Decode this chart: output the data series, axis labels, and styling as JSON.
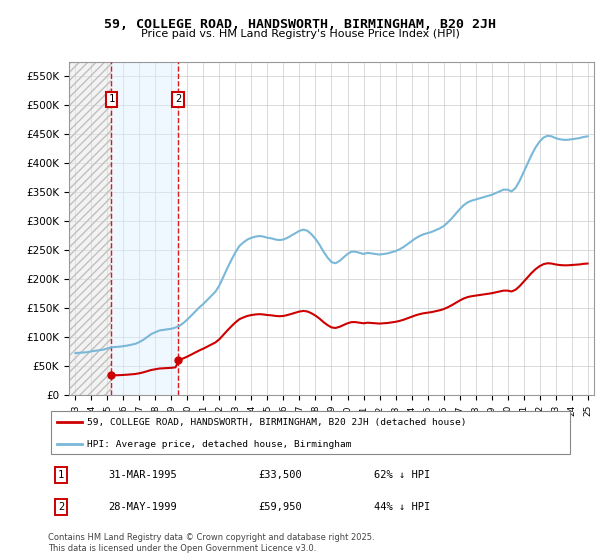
{
  "title": "59, COLLEGE ROAD, HANDSWORTH, BIRMINGHAM, B20 2JH",
  "subtitle": "Price paid vs. HM Land Registry's House Price Index (HPI)",
  "ylim": [
    0,
    575000
  ],
  "yticks": [
    0,
    50000,
    100000,
    150000,
    200000,
    250000,
    300000,
    350000,
    400000,
    450000,
    500000,
    550000
  ],
  "ytick_labels": [
    "£0",
    "£50K",
    "£100K",
    "£150K",
    "£200K",
    "£250K",
    "£300K",
    "£350K",
    "£400K",
    "£450K",
    "£500K",
    "£550K"
  ],
  "sale1_x": 1995.25,
  "sale1_price": 33500,
  "sale2_x": 1999.42,
  "sale2_price": 59950,
  "hpi_color": "#7ab8d9",
  "price_color": "#cc0000",
  "legend_label_price": "59, COLLEGE ROAD, HANDSWORTH, BIRMINGHAM, B20 2JH (detached house)",
  "legend_label_hpi": "HPI: Average price, detached house, Birmingham",
  "footer": "Contains HM Land Registry data © Crown copyright and database right 2025.\nThis data is licensed under the Open Government Licence v3.0.",
  "table": [
    {
      "num": "1",
      "date": "31-MAR-1995",
      "price": "£33,500",
      "note": "62% ↓ HPI"
    },
    {
      "num": "2",
      "date": "28-MAY-1999",
      "price": "£59,950",
      "note": "44% ↓ HPI"
    }
  ],
  "hpi_data": {
    "dates": [
      1993.0,
      1993.25,
      1993.5,
      1993.75,
      1994.0,
      1994.25,
      1994.5,
      1994.75,
      1995.0,
      1995.25,
      1995.5,
      1995.75,
      1996.0,
      1996.25,
      1996.5,
      1996.75,
      1997.0,
      1997.25,
      1997.5,
      1997.75,
      1998.0,
      1998.25,
      1998.5,
      1998.75,
      1999.0,
      1999.25,
      1999.5,
      1999.75,
      2000.0,
      2000.25,
      2000.5,
      2000.75,
      2001.0,
      2001.25,
      2001.5,
      2001.75,
      2002.0,
      2002.25,
      2002.5,
      2002.75,
      2003.0,
      2003.25,
      2003.5,
      2003.75,
      2004.0,
      2004.25,
      2004.5,
      2004.75,
      2005.0,
      2005.25,
      2005.5,
      2005.75,
      2006.0,
      2006.25,
      2006.5,
      2006.75,
      2007.0,
      2007.25,
      2007.5,
      2007.75,
      2008.0,
      2008.25,
      2008.5,
      2008.75,
      2009.0,
      2009.25,
      2009.5,
      2009.75,
      2010.0,
      2010.25,
      2010.5,
      2010.75,
      2011.0,
      2011.25,
      2011.5,
      2011.75,
      2012.0,
      2012.25,
      2012.5,
      2012.75,
      2013.0,
      2013.25,
      2013.5,
      2013.75,
      2014.0,
      2014.25,
      2014.5,
      2014.75,
      2015.0,
      2015.25,
      2015.5,
      2015.75,
      2016.0,
      2016.25,
      2016.5,
      2016.75,
      2017.0,
      2017.25,
      2017.5,
      2017.75,
      2018.0,
      2018.25,
      2018.5,
      2018.75,
      2019.0,
      2019.25,
      2019.5,
      2019.75,
      2020.0,
      2020.25,
      2020.5,
      2020.75,
      2021.0,
      2021.25,
      2021.5,
      2021.75,
      2022.0,
      2022.25,
      2022.5,
      2022.75,
      2023.0,
      2023.25,
      2023.5,
      2023.75,
      2024.0,
      2024.25,
      2024.5,
      2024.75,
      2025.0
    ],
    "values": [
      72000,
      72500,
      73000,
      73500,
      75000,
      76000,
      77000,
      78000,
      80000,
      82000,
      82500,
      83000,
      84000,
      85000,
      86500,
      88000,
      91000,
      95000,
      100000,
      105000,
      108000,
      111000,
      112000,
      113000,
      114000,
      116000,
      119000,
      124000,
      130000,
      137000,
      144000,
      151000,
      157000,
      164000,
      171000,
      178000,
      189000,
      204000,
      219000,
      233000,
      246000,
      257000,
      263000,
      268000,
      271000,
      273000,
      274000,
      273000,
      271000,
      270000,
      268000,
      267000,
      268000,
      271000,
      275000,
      279000,
      283000,
      285000,
      283000,
      277000,
      269000,
      259000,
      247000,
      237000,
      229000,
      227000,
      231000,
      237000,
      243000,
      247000,
      247000,
      245000,
      243000,
      245000,
      244000,
      243000,
      242000,
      243000,
      244000,
      246000,
      248000,
      251000,
      255000,
      260000,
      265000,
      270000,
      274000,
      277000,
      279000,
      281000,
      284000,
      287000,
      291000,
      297000,
      304000,
      312000,
      320000,
      327000,
      332000,
      335000,
      337000,
      339000,
      341000,
      343000,
      345000,
      348000,
      351000,
      354000,
      354000,
      351000,
      357000,
      369000,
      384000,
      399000,
      414000,
      427000,
      437000,
      444000,
      447000,
      446000,
      443000,
      441000,
      440000,
      440000,
      441000,
      442000,
      443000,
      445000,
      446000
    ]
  },
  "xmin": 1992.6,
  "xmax": 2025.4
}
